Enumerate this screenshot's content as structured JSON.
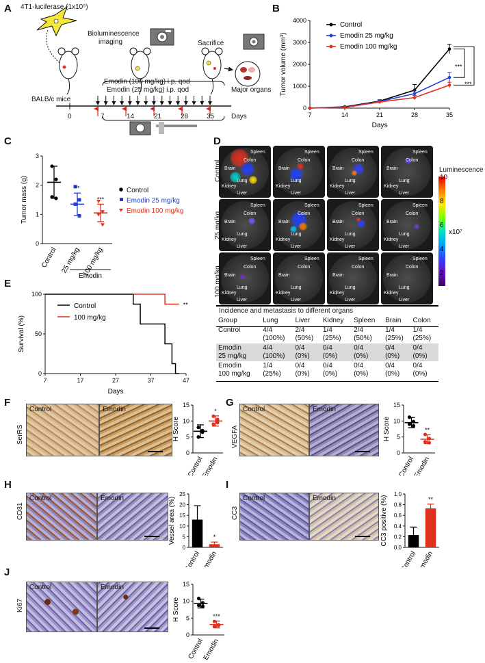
{
  "panel_labels": [
    "A",
    "B",
    "C",
    "D",
    "E",
    "F",
    "G",
    "H",
    "I",
    "J"
  ],
  "panelA": {
    "cell_label": "4T1-luciferase (1x10⁵)",
    "imaging_label_line1": "Bioluminescence",
    "imaging_label_line2": "imaging",
    "sacrifice_label": "Sacrifice",
    "treatment_line1": "Emodin (100 mg/kg) i.p. qod",
    "treatment_line2": "Emodin (25 mg/kg) i.p. qod",
    "mice_label": "BALB/c mice",
    "organs_label": "Major organs",
    "timeline_ticks": [
      "0",
      "7",
      "14",
      "21",
      "28",
      "35"
    ],
    "timeline_unit": "Days"
  },
  "chart_data": [
    {
      "panel": "B",
      "type": "line",
      "xlabel": "Days",
      "ylabel": "Tumor volume (mm³)",
      "x": [
        7,
        14,
        21,
        28,
        35
      ],
      "xlim": [
        7,
        35
      ],
      "ylim": [
        0,
        4000
      ],
      "yticks": [
        0,
        1000,
        2000,
        3000,
        4000
      ],
      "series": [
        {
          "name": "Control",
          "color": "#000000",
          "values": [
            0,
            60,
            320,
            820,
            2700
          ],
          "err": [
            0,
            20,
            60,
            260,
            220
          ]
        },
        {
          "name": "Emodin 25 mg/kg",
          "color": "#1f3fd1",
          "values": [
            0,
            40,
            300,
            660,
            1400
          ],
          "err": [
            0,
            20,
            50,
            160,
            230
          ]
        },
        {
          "name": "Emodin 100 mg/kg",
          "color": "#e0301e",
          "values": [
            0,
            30,
            280,
            480,
            1050
          ],
          "err": [
            0,
            15,
            40,
            100,
            130
          ]
        }
      ],
      "significance": [
        "***",
        "***"
      ]
    },
    {
      "panel": "C",
      "type": "scatter",
      "ylabel": "Tumor mass (g)",
      "ylim": [
        0,
        3
      ],
      "yticks": [
        0,
        1,
        2,
        3
      ],
      "categories": [
        "Control",
        "25 mg/kg",
        "100 mg/kg"
      ],
      "group_label": "Emodin",
      "series": [
        {
          "name": "Control",
          "color": "#000000",
          "marker": "circle",
          "mean": 2.1,
          "sd": 0.55,
          "points": [
            2.65,
            2.2,
            1.6,
            1.55
          ]
        },
        {
          "name": "Emodin 25 mg/kg",
          "color": "#1f3fd1",
          "marker": "square",
          "mean": 1.35,
          "sd": 0.38,
          "points": [
            1.95,
            1.5,
            1.35,
            0.95
          ]
        },
        {
          "name": "Emodin 100 mg/kg",
          "color": "#e0301e",
          "marker": "triangle",
          "mean": 1.05,
          "sd": 0.3,
          "points": [
            1.45,
            1.1,
            1.0,
            0.65
          ]
        }
      ],
      "significance": [
        "",
        "**",
        "***"
      ]
    },
    {
      "panel": "E",
      "type": "line",
      "xlabel": "Days",
      "ylabel": "Survival (%)",
      "xticks": [
        7,
        17,
        27,
        37,
        47
      ],
      "xlim": [
        7,
        47
      ],
      "yticks": [
        0,
        50,
        100
      ],
      "ylim": [
        0,
        100
      ],
      "series": [
        {
          "name": "Control",
          "color": "#000000",
          "x": [
            7,
            32,
            32,
            34,
            34,
            41,
            41,
            43,
            43,
            44,
            44,
            45
          ],
          "values": [
            100,
            100,
            87.5,
            87.5,
            62.5,
            62.5,
            37.5,
            37.5,
            12.5,
            12.5,
            0,
            0
          ]
        },
        {
          "name": "100 mg/kg",
          "color": "#e0301e",
          "x": [
            32,
            41,
            41,
            45
          ],
          "values": [
            100,
            100,
            87.5,
            87.5
          ]
        }
      ],
      "significance": "**"
    },
    {
      "panel": "F",
      "type": "scatter",
      "ylabel": "H Score",
      "ylim": [
        0,
        15
      ],
      "yticks": [
        0,
        5,
        10,
        15
      ],
      "categories": [
        "Control",
        "Emodin"
      ],
      "series": [
        {
          "name": "Control",
          "color": "#000000",
          "mean": 6.8,
          "sd": 2.0,
          "points": [
            8.0,
            6.5,
            5.0,
            7.0
          ]
        },
        {
          "name": "Emodin",
          "color": "#e0301e",
          "mean": 10.0,
          "sd": 1.6,
          "points": [
            11.5,
            10.5,
            9.0,
            9.5
          ]
        }
      ],
      "significance": [
        "",
        "*"
      ]
    },
    {
      "panel": "G",
      "type": "scatter",
      "ylabel": "H Score",
      "ylim": [
        0,
        15
      ],
      "yticks": [
        0,
        5,
        10,
        15
      ],
      "categories": [
        "Control",
        "Emodin"
      ],
      "series": [
        {
          "name": "Control",
          "color": "#000000",
          "mean": 9.5,
          "sd": 1.6,
          "points": [
            11.2,
            9.8,
            9.0,
            8.5
          ]
        },
        {
          "name": "Emodin",
          "color": "#e0301e",
          "mean": 4.3,
          "sd": 1.4,
          "points": [
            5.8,
            4.5,
            3.5,
            3.2
          ]
        }
      ],
      "significance": [
        "",
        "**"
      ]
    },
    {
      "panel": "H",
      "type": "bar",
      "ylabel": "Vessel area (%)",
      "ylim": [
        0,
        25
      ],
      "yticks": [
        0,
        5,
        10,
        15,
        20,
        25
      ],
      "categories": [
        "Control",
        "Emodin"
      ],
      "values": [
        13,
        1.5
      ],
      "err": [
        6.5,
        1.0
      ],
      "colors": [
        "#000000",
        "#e0301e"
      ],
      "significance": [
        "",
        "*"
      ]
    },
    {
      "panel": "I",
      "type": "bar",
      "ylabel": "CC3 positive (%)",
      "ylim": [
        0,
        1.0
      ],
      "yticks": [
        0.0,
        0.2,
        0.4,
        0.6,
        0.8,
        1.0
      ],
      "categories": [
        "Control",
        "Emodin"
      ],
      "values": [
        0.23,
        0.73
      ],
      "err": [
        0.15,
        0.08
      ],
      "colors": [
        "#000000",
        "#e0301e"
      ],
      "significance": [
        "",
        "**"
      ]
    },
    {
      "panel": "J",
      "type": "scatter",
      "ylabel": "H Score",
      "ylim": [
        0,
        15
      ],
      "yticks": [
        0,
        5,
        10,
        15
      ],
      "categories": [
        "Control",
        "Emodin"
      ],
      "series": [
        {
          "name": "Control",
          "color": "#000000",
          "mean": 9.3,
          "sd": 1.3,
          "points": [
            10.8,
            9.5,
            8.8,
            8.5
          ]
        },
        {
          "name": "Emodin",
          "color": "#e0301e",
          "mean": 3.1,
          "sd": 1.0,
          "points": [
            4.0,
            3.0,
            2.5,
            2.8
          ]
        }
      ],
      "significance": [
        "",
        "***"
      ]
    }
  ],
  "panelD": {
    "row_labels": [
      "Control",
      "25 mg/kg",
      "100 mg/kg"
    ],
    "organ_tags": [
      "Spleen",
      "Colon",
      "Brain",
      "Lung",
      "Kidney",
      "Liver"
    ],
    "colorbar_title": "Luminescence",
    "colorbar_ticks": [
      "10",
      "8",
      "6",
      "4",
      "2"
    ],
    "colorbar_unit": "x10⁷",
    "table_title": "Incidence and metastasis to different organs",
    "table_header": [
      "Group",
      "Lung",
      "Liver",
      "Kidney",
      "Spleen",
      "Brain",
      "Colon"
    ],
    "table_rows": [
      {
        "group": [
          "Control",
          ""
        ],
        "cells": [
          [
            "4/4",
            "(100%)"
          ],
          [
            "2/4",
            "(50%)"
          ],
          [
            "1/4",
            "(25%)"
          ],
          [
            "2/4",
            "(50%)"
          ],
          [
            "1/4",
            "(25%)"
          ],
          [
            "1/4",
            "(25%)"
          ]
        ]
      },
      {
        "group": [
          "Emodin",
          "25 mg/kg"
        ],
        "cells": [
          [
            "4/4",
            "(100%)"
          ],
          [
            "0/4",
            "(0%)"
          ],
          [
            "0/4",
            "(0%)"
          ],
          [
            "0/4",
            "(0%)"
          ],
          [
            "0/4",
            "(0%)"
          ],
          [
            "0/4",
            "(0%)"
          ]
        ]
      },
      {
        "group": [
          "Emodin",
          "100 mg/kg"
        ],
        "cells": [
          [
            "1/4",
            "(25%)"
          ],
          [
            "0/4",
            "(0%)"
          ],
          [
            "0/4",
            "(0%)"
          ],
          [
            "0/4",
            "(0%)"
          ],
          [
            "0/4",
            "(0%)"
          ],
          [
            "0/4",
            "(0%)"
          ]
        ]
      }
    ]
  },
  "micro_panels": {
    "F": {
      "stain": "SerRS",
      "left": "Control",
      "right": "Emodin"
    },
    "G": {
      "stain": "VEGFA",
      "left": "Control",
      "right": "Emodin"
    },
    "H": {
      "stain": "CD31",
      "left": "Control",
      "right": "Emodin"
    },
    "I": {
      "stain": "CC3",
      "left": "Control",
      "right": "Emodin"
    },
    "J": {
      "stain": "Ki67",
      "left": "Control",
      "right": "Emodin"
    }
  }
}
